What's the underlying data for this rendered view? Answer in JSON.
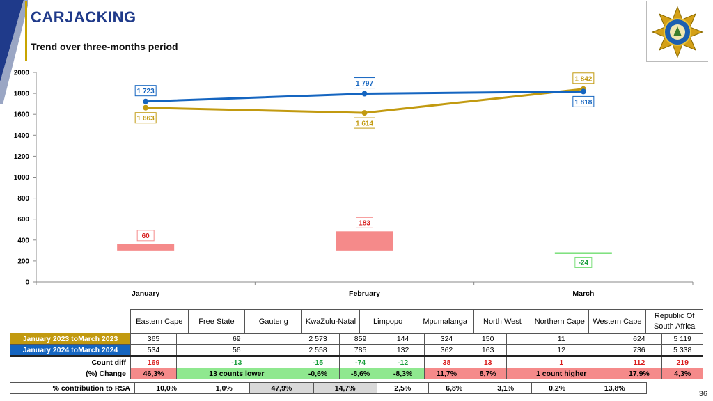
{
  "page": {
    "title": "CARJACKING",
    "subtitle": "Trend over three-months period",
    "page_number": "36"
  },
  "logo": {
    "name": "saps-star-badge"
  },
  "colors": {
    "series_2023": "#c29a10",
    "series_2024": "#1565c0",
    "increase": "#f58a8a",
    "decrease": "#7be07b",
    "title": "#1f3a8a"
  },
  "chart_data": {
    "type": "line",
    "categories": [
      "January",
      "February",
      "March"
    ],
    "yticks": [
      "0",
      "200",
      "400",
      "600",
      "800",
      "1000",
      "1200",
      "1400",
      "1600",
      "1800",
      "2000"
    ],
    "ylim": [
      0,
      2000
    ],
    "series": [
      {
        "values": [
          1663,
          1614,
          1842
        ],
        "labels": [
          "1 663",
          "1 614",
          "1 842"
        ],
        "color": "#c29a10"
      },
      {
        "values": [
          1723,
          1797,
          1818
        ],
        "labels": [
          "1 723",
          "1 797",
          "1 818"
        ],
        "color": "#1565c0"
      }
    ],
    "difference": {
      "values": [
        60,
        183,
        -24
      ],
      "labels": [
        "60",
        "183",
        "-24"
      ]
    },
    "grid": false
  },
  "table": {
    "columns": [
      "Eastern Cape",
      "Free State",
      "Gauteng",
      "KwaZulu-Natal",
      "Limpopo",
      "Mpumalanga",
      "North West",
      "Northern Cape",
      "Western Cape",
      "Republic Of South Africa"
    ],
    "rows": [
      {
        "label": "January 2023 toMarch 2023",
        "cells": [
          "365",
          "69",
          "2 573",
          "859",
          "144",
          "324",
          "150",
          "11",
          "624",
          "5 119"
        ]
      },
      {
        "label": "January 2024 toMarch 2024",
        "cells": [
          "534",
          "56",
          "2 558",
          "785",
          "132",
          "362",
          "163",
          "12",
          "736",
          "5 338"
        ]
      },
      {
        "label": "Count diff",
        "cells": [
          "169",
          "-13",
          "-15",
          "-74",
          "-12",
          "38",
          "13",
          "1",
          "112",
          "219"
        ]
      },
      {
        "label": "(%) Change",
        "cells": [
          "46,3%",
          "13 counts lower",
          "-0,6%",
          "-8,6%",
          "-8,3%",
          "11,7%",
          "8,7%",
          "1 count higher",
          "17,9%",
          "4,3%"
        ]
      }
    ],
    "contribution": {
      "label": "% contribution to RSA",
      "cells": [
        "10,0%",
        "1,0%",
        "47,9%",
        "14,7%",
        "2,5%",
        "6,8%",
        "3,1%",
        "0,2%",
        "13,8%"
      ]
    }
  }
}
